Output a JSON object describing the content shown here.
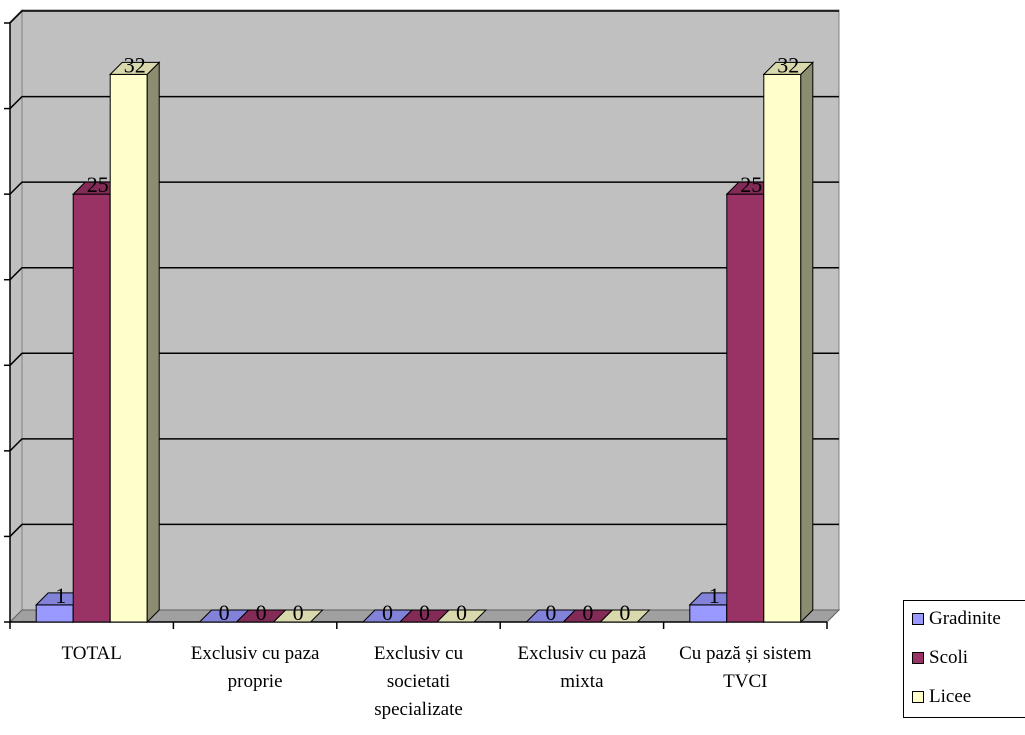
{
  "chart_data": {
    "type": "bar",
    "style": "3d-clustered-column",
    "categories": [
      "TOTAL",
      "Exclusiv cu paza proprie",
      "Exclusiv cu societati specializate",
      "Exclusiv cu pază mixta",
      "Cu pază și sistem TVCI"
    ],
    "series": [
      {
        "name": "Gradinite",
        "values": [
          1,
          0,
          0,
          0,
          1
        ],
        "color": "#9999ff"
      },
      {
        "name": "Scoli",
        "values": [
          25,
          0,
          0,
          0,
          25
        ],
        "color": "#993366"
      },
      {
        "name": "Licee",
        "values": [
          32,
          0,
          0,
          0,
          32
        ],
        "color": "#ffffcc"
      }
    ],
    "ylim": [
      0,
      35
    ],
    "grid": true,
    "wall_color": "#c0c0c0",
    "legend_position": "bottom-right",
    "xlabel": "",
    "ylabel": ""
  }
}
